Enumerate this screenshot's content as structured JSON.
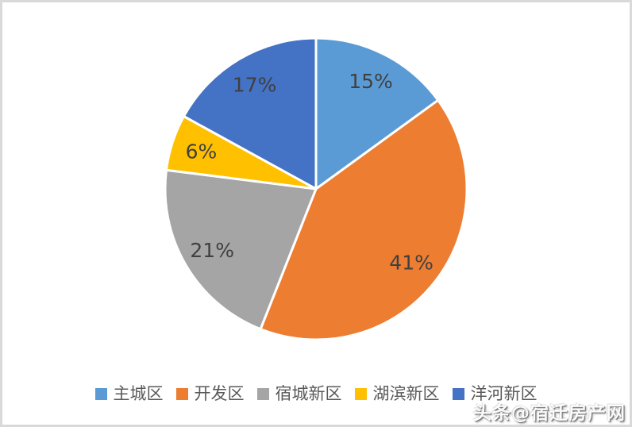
{
  "watermark": {
    "text": "头条@宿迁房产网"
  },
  "chart_data": {
    "type": "pie",
    "title": "",
    "start_angle_deg": 0,
    "direction": "clockwise",
    "legend_position": "bottom",
    "data_label_color": "#404040",
    "slices": [
      {
        "label": "主城区",
        "value": 15,
        "display": "15%",
        "color": "#5B9BD5"
      },
      {
        "label": "开发区",
        "value": 41,
        "display": "41%",
        "color": "#ED7D31"
      },
      {
        "label": "宿城新区",
        "value": 21,
        "display": "21%",
        "color": "#A5A5A5"
      },
      {
        "label": "湖滨新区",
        "value": 6,
        "display": "6%",
        "color": "#FFC000"
      },
      {
        "label": "洋河新区",
        "value": 17,
        "display": "17%",
        "color": "#4472C4"
      }
    ]
  }
}
